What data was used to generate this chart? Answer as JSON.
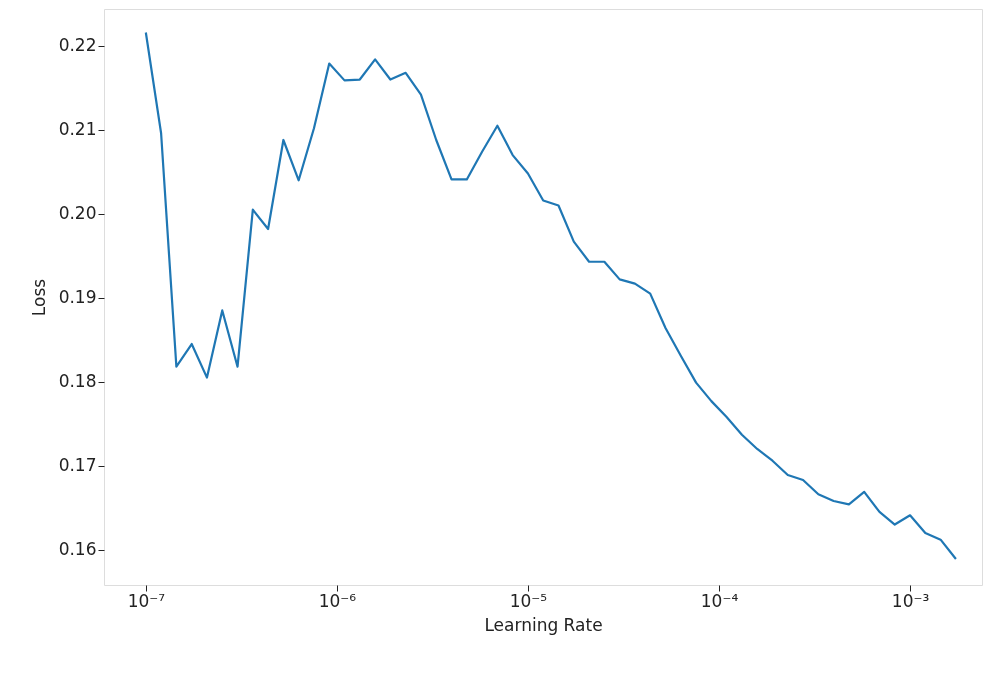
{
  "chart_data": {
    "type": "line",
    "xlabel": "Learning Rate",
    "ylabel": "Loss",
    "log": "x",
    "grid": false,
    "marker": "none",
    "line_style": "solid",
    "x": [
      1e-07,
      1.202e-07,
      1.445e-07,
      1.738e-07,
      2.089e-07,
      2.512e-07,
      3.02e-07,
      3.631e-07,
      4.365e-07,
      5.248e-07,
      6.31e-07,
      7.586e-07,
      9.12e-07,
      1.096e-06,
      1.318e-06,
      1.585e-06,
      1.905e-06,
      2.291e-06,
      2.754e-06,
      3.311e-06,
      3.981e-06,
      4.786e-06,
      5.754e-06,
      6.918e-06,
      8.318e-06,
      1e-05,
      1.202e-05,
      1.445e-05,
      1.738e-05,
      2.089e-05,
      2.512e-05,
      3.02e-05,
      3.631e-05,
      4.365e-05,
      5.248e-05,
      6.31e-05,
      7.586e-05,
      9.12e-05,
      0.0001096,
      0.0001318,
      0.0001585,
      0.0001905,
      0.0002291,
      0.0002754,
      0.0003311,
      0.0003981,
      0.0004786,
      0.0005754,
      0.0006918,
      0.0008318,
      0.001,
      0.001202,
      0.001445,
      0.001738
    ],
    "series": [
      {
        "color": "#1f77b4",
        "values": [
          0.2216,
          0.2096,
          0.1818,
          0.1845,
          0.1805,
          0.1885,
          0.1818,
          0.2005,
          0.1982,
          0.2088,
          0.204,
          0.2102,
          0.2179,
          0.2159,
          0.216,
          0.2184,
          0.216,
          0.2168,
          0.2142,
          0.2088,
          0.2041,
          0.2041,
          0.2074,
          0.2105,
          0.207,
          0.2048,
          0.2016,
          0.201,
          0.1967,
          0.1943,
          0.1943,
          0.1922,
          0.1917,
          0.1905,
          0.1864,
          0.1831,
          0.1799,
          0.1777,
          0.1758,
          0.1737,
          0.172,
          0.1706,
          0.1689,
          0.1683,
          0.1666,
          0.1658,
          0.1654,
          0.1669,
          0.1645,
          0.163,
          0.1641,
          0.162,
          0.1612,
          0.1589
        ]
      }
    ],
    "xlim": [
      6.04e-08,
      0.00238
    ],
    "ylim": [
      0.1558,
      0.2244
    ],
    "xticks": [
      {
        "value": 1e-07,
        "label": "10⁻⁷"
      },
      {
        "value": 1e-06,
        "label": "10⁻⁶"
      },
      {
        "value": 1e-05,
        "label": "10⁻⁵"
      },
      {
        "value": 0.0001,
        "label": "10⁻⁴"
      },
      {
        "value": 0.001,
        "label": "10⁻³"
      }
    ],
    "yticks": [
      0.16,
      0.17,
      0.18,
      0.19,
      {
        "value": 0.2,
        "label": "0.20"
      },
      0.21,
      0.22
    ]
  }
}
